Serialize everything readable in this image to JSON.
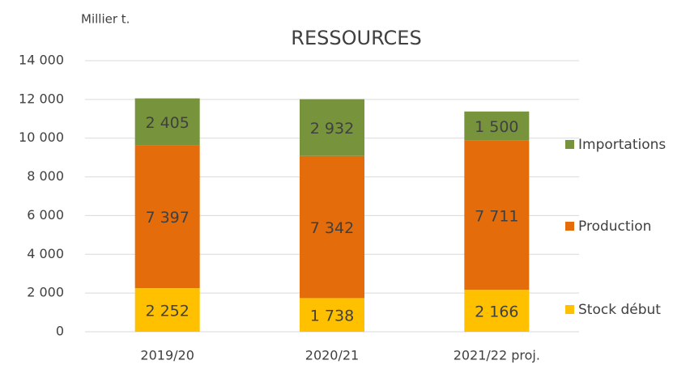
{
  "chart_data": {
    "type": "stacked_bar",
    "title": "RESSOURCES",
    "y_label": "Millier t.",
    "categories": [
      "2019/20",
      "2020/21",
      "2021/22 proj."
    ],
    "series": [
      {
        "name": "Stock début",
        "color": "#ffc000",
        "values": [
          2252,
          1738,
          2166
        ],
        "value_labels": [
          "2 252",
          "1 738",
          "2 166"
        ]
      },
      {
        "name": "Production",
        "color": "#e46c0a",
        "values": [
          7397,
          7342,
          7711
        ],
        "value_labels": [
          "7 397",
          "7 342",
          "7 711"
        ]
      },
      {
        "name": "Importations",
        "color": "#77933c",
        "values": [
          2405,
          2932,
          1500
        ],
        "value_labels": [
          "2 405",
          "2 932",
          "1 500"
        ]
      }
    ],
    "ylim": [
      0,
      14000
    ],
    "yticks": [
      {
        "value": 0,
        "label": "0"
      },
      {
        "value": 2000,
        "label": "2 000"
      },
      {
        "value": 4000,
        "label": "4 000"
      },
      {
        "value": 6000,
        "label": "6 000"
      },
      {
        "value": 8000,
        "label": "8 000"
      },
      {
        "value": 10000,
        "label": "10 000"
      },
      {
        "value": 12000,
        "label": "12 000"
      },
      {
        "value": 14000,
        "label": "14 000"
      }
    ],
    "grid": true,
    "legend": "right"
  }
}
